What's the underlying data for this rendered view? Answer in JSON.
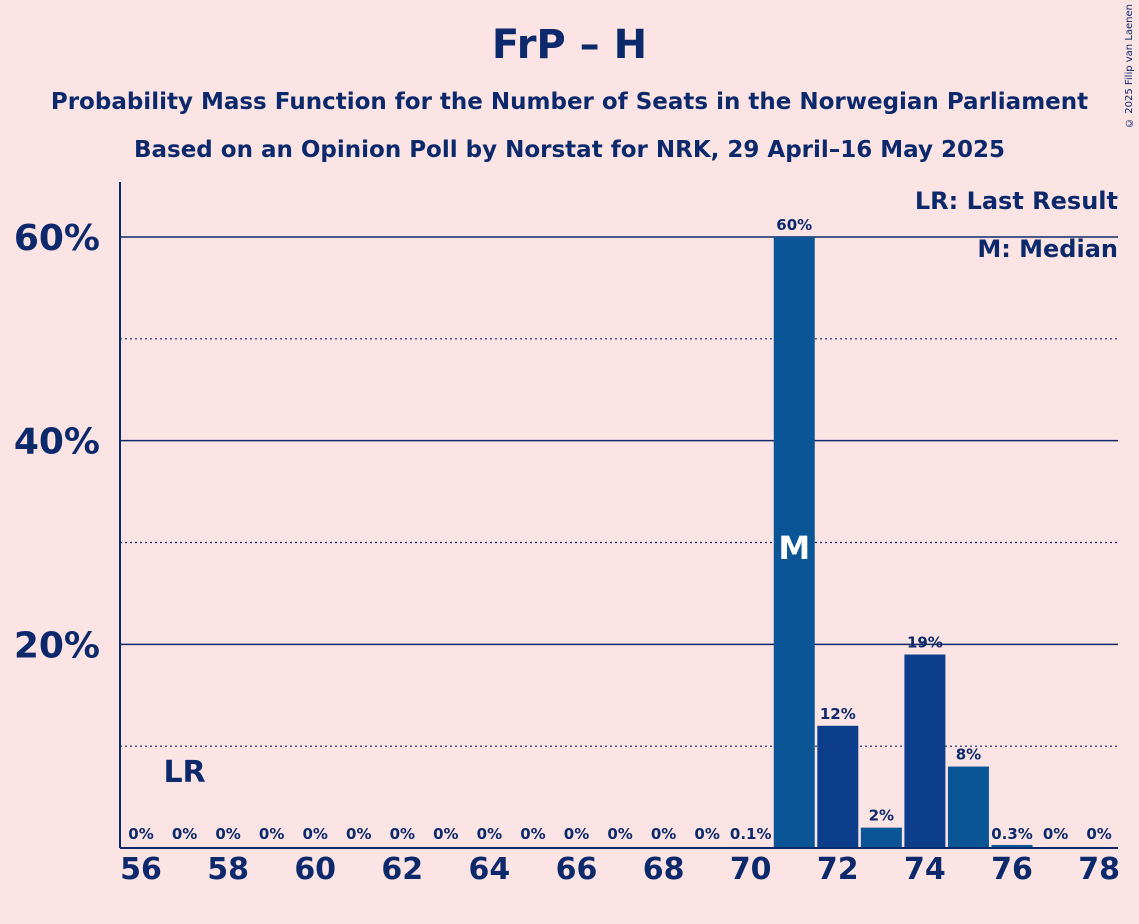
{
  "header": {
    "title": "FrP – H",
    "subtitle1": "Probability Mass Function for the Number of Seats in the Norwegian Parliament",
    "subtitle2": "Based on an Opinion Poll by Norstat for NRK, 29 April–16 May 2025",
    "copyright": "© 2025 Filip van Laenen"
  },
  "legend": {
    "lr": "LR: Last Result",
    "m": "M: Median"
  },
  "colors": {
    "background": "#fde4e4",
    "text": "#0c2a6b",
    "bar_blue": "#0a5596",
    "bar_navy": "#0d3e8c"
  },
  "chart_data": {
    "type": "bar",
    "x": [
      56,
      57,
      58,
      59,
      60,
      61,
      62,
      63,
      64,
      65,
      66,
      67,
      68,
      69,
      70,
      71,
      72,
      73,
      74,
      75,
      76,
      77,
      78
    ],
    "values": [
      0,
      0,
      0,
      0,
      0,
      0,
      0,
      0,
      0,
      0,
      0,
      0,
      0,
      0,
      0.1,
      60,
      12,
      2,
      19,
      8,
      0.3,
      0,
      0
    ],
    "labels": [
      "0%",
      "0%",
      "0%",
      "0%",
      "0%",
      "0%",
      "0%",
      "0%",
      "0%",
      "0%",
      "0%",
      "0%",
      "0%",
      "0%",
      "0.1%",
      "60%",
      "12%",
      "2%",
      "19%",
      "8%",
      "0.3%",
      "0%",
      "0%"
    ],
    "x_tick_labels": [
      "56",
      "58",
      "60",
      "62",
      "64",
      "66",
      "68",
      "70",
      "72",
      "74",
      "76",
      "78"
    ],
    "y_tick_labels": [
      "20%",
      "40%",
      "60%"
    ],
    "ylim": [
      0,
      65
    ],
    "last_result": 57,
    "last_result_marker": "LR",
    "median": 71,
    "median_marker": "M",
    "grid": "solid major at 20/40/60, dotted minor at 10/30/50",
    "legend_placement": "top-right"
  }
}
